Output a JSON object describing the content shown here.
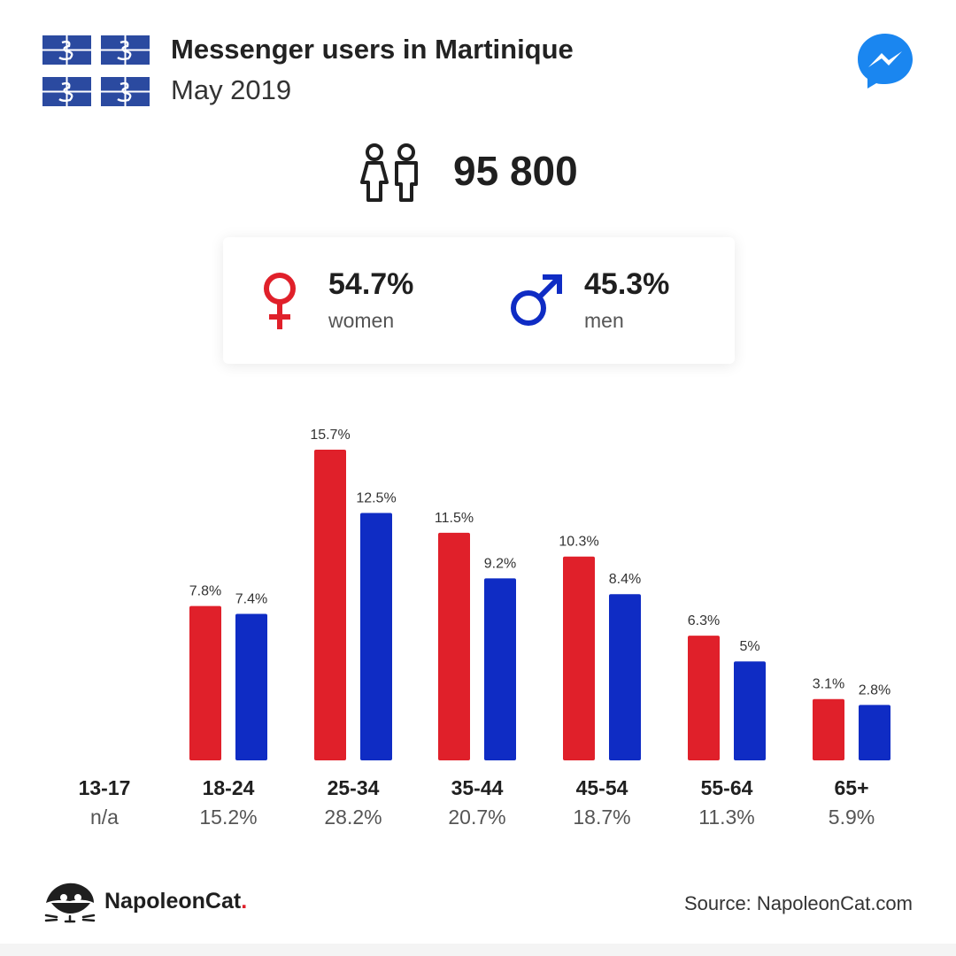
{
  "header": {
    "title": "Messenger users in Martinique",
    "subtitle": "May 2019",
    "flag_icon": "martinique-flag-icon",
    "logo_icon": "messenger-icon"
  },
  "total": {
    "icon": "people-icon",
    "value": "95 800"
  },
  "gender": {
    "women": {
      "percent": "54.7%",
      "label": "women",
      "icon": "female-symbol-icon",
      "color": "#e0202a"
    },
    "men": {
      "percent": "45.3%",
      "label": "men",
      "icon": "male-symbol-icon",
      "color": "#0f2cc4"
    }
  },
  "chart_data": {
    "type": "bar",
    "categories": [
      "13-17",
      "18-24",
      "25-34",
      "35-44",
      "45-54",
      "55-64",
      "65+"
    ],
    "totals": [
      "n/a",
      "15.2%",
      "28.2%",
      "20.7%",
      "18.7%",
      "11.3%",
      "5.9%"
    ],
    "series": [
      {
        "name": "women",
        "color": "#e0202a",
        "values": [
          null,
          7.8,
          15.7,
          11.5,
          10.3,
          6.3,
          3.1
        ],
        "labels": [
          "",
          "7.8%",
          "15.7%",
          "11.5%",
          "10.3%",
          "6.3%",
          "3.1%"
        ]
      },
      {
        "name": "men",
        "color": "#0f2cc4",
        "values": [
          null,
          7.4,
          12.5,
          9.2,
          8.4,
          5,
          2.8
        ],
        "labels": [
          "",
          "7.4%",
          "12.5%",
          "9.2%",
          "8.4%",
          "5%",
          "2.8%"
        ]
      }
    ],
    "ylim": [
      0,
      15.7
    ],
    "grid": false,
    "legend": "none"
  },
  "footer": {
    "brand": "NapoleonCat",
    "brand_dot": ".",
    "brand_icon": "napoleoncat-logo-icon",
    "source": "Source: NapoleonCat.com"
  }
}
